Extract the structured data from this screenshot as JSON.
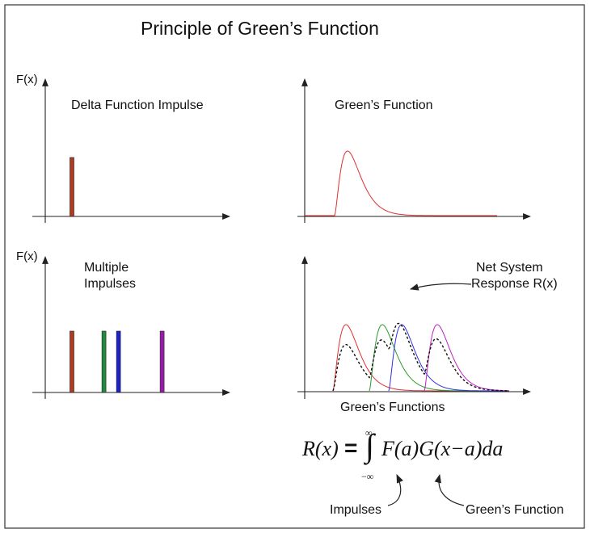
{
  "title": "Principle of Green’s Function",
  "panels": {
    "top_left": {
      "axis_label": "F(x)",
      "label": "Delta Function Impulse"
    },
    "top_right": {
      "label": "Green’s Function"
    },
    "bottom_left": {
      "axis_label": "F(x)",
      "label_line1": "Multiple",
      "label_line2": "Impulses"
    },
    "bottom_right": {
      "annotation_line1": "Net System",
      "annotation_line2": "Response R(x)",
      "xlabel": "Green’s Functions"
    }
  },
  "equation": {
    "lhs": "R(x)",
    "equals": "=",
    "upper_limit": "∞",
    "lower_limit": "−∞",
    "integrand": "F(a)G(x−a)da",
    "callout_left": "Impulses",
    "callout_right": "Green’s Function"
  },
  "impulses": {
    "single": {
      "position": 1,
      "height": 1,
      "color": "#b23a1e"
    },
    "multiple": [
      {
        "position": 1,
        "height": 1,
        "color": "#b23a1e"
      },
      {
        "position": 2.1,
        "height": 1,
        "color": "#1f8a3a"
      },
      {
        "position": 2.6,
        "height": 1,
        "color": "#1a22c8"
      },
      {
        "position": 4.1,
        "height": 1,
        "color": "#9a1aa8"
      }
    ]
  },
  "colors": {
    "axes": "#222222",
    "net_response": "#111111",
    "responses": [
      "#e03030",
      "#2a9a2a",
      "#3030e0",
      "#c020c0"
    ]
  }
}
